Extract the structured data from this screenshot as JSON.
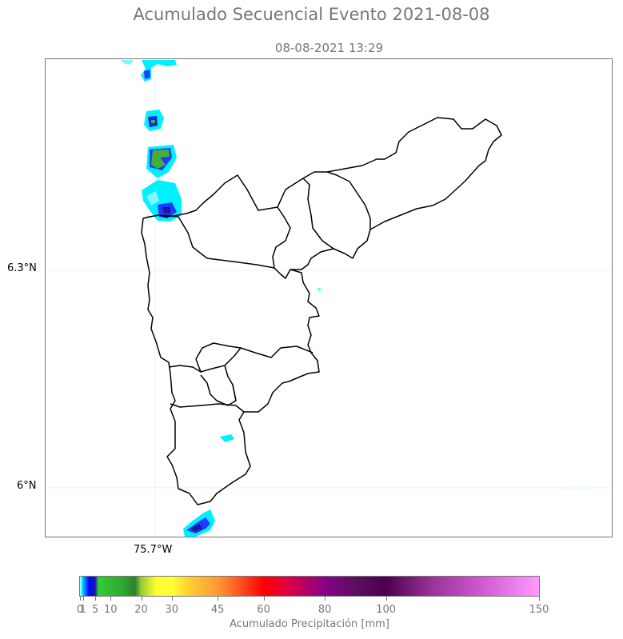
{
  "figure": {
    "title": "Acumulado Secuencial Evento 2021-08-08",
    "subtitle": "08-08-2021 13:29"
  },
  "map": {
    "lat_labels": [
      "6.3°N",
      "6°N"
    ],
    "lon_labels": [
      "75.7°W"
    ],
    "boundary_color": "#000000",
    "gridline_color": "#e6e6e6"
  },
  "colorbar": {
    "label": "Acumulado Precipitación [mm]",
    "ticks": [
      "0",
      "1",
      "5",
      "10",
      "20",
      "30",
      "45",
      "60",
      "80",
      "100",
      "150"
    ],
    "tick_values": [
      0,
      1,
      5,
      10,
      20,
      30,
      45,
      60,
      80,
      100,
      150
    ],
    "colors": [
      "#00ffff",
      "#0000ff",
      "#33cc33",
      "#ffff33",
      "#ff9933",
      "#ff0000",
      "#990066",
      "#4d004d",
      "#ff99ff"
    ]
  }
}
